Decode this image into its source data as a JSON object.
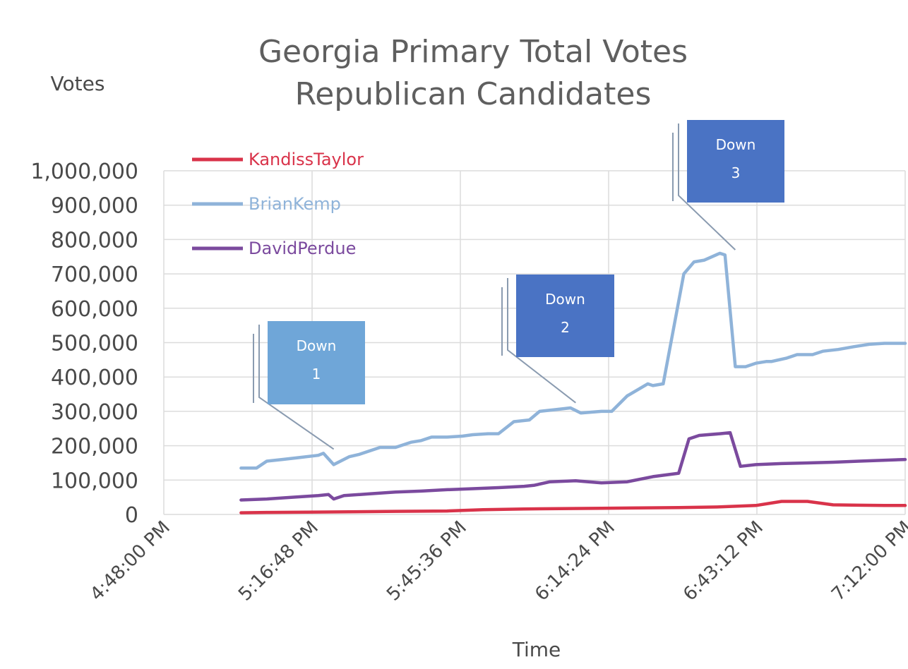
{
  "chart_data": {
    "type": "line",
    "title_line1": "Georgia Primary Total Votes",
    "title_line2": "Republican Candidates",
    "ylabel": "Votes",
    "xlabel": "Time",
    "y_ticks": [
      "1,000,000",
      "900,000",
      "800,000",
      "700,000",
      "600,000",
      "500,000",
      "400,000",
      "300,000",
      "200,000",
      "100,000",
      "0"
    ],
    "y_tick_values": [
      1000000,
      900000,
      800000,
      700000,
      600000,
      500000,
      400000,
      300000,
      200000,
      100000,
      0
    ],
    "x_ticks": [
      "4:48:00 PM",
      "5:16:48 PM",
      "5:45:36 PM",
      "6:14:24 PM",
      "6:43:12 PM",
      "7:12:00 PM"
    ],
    "x_tick_minutes": [
      0,
      28.8,
      57.6,
      86.4,
      115.2,
      144
    ],
    "ylim": [
      0,
      1000000
    ],
    "xlim_minutes": [
      0,
      144
    ],
    "grid": true,
    "legend_position": "top-left",
    "series": [
      {
        "name": "KandissTaylor",
        "color": "#d9334a",
        "x_minutes": [
          15,
          20,
          30,
          45,
          55,
          62,
          70,
          85,
          100,
          108,
          115,
          120,
          125,
          130,
          135,
          140,
          144
        ],
        "values": [
          5000,
          6000,
          7000,
          9000,
          10000,
          14000,
          16000,
          18000,
          20000,
          22000,
          26000,
          38000,
          38000,
          28000,
          27000,
          26000,
          26000
        ]
      },
      {
        "name": "BrianKemp",
        "color": "#8fb3d9",
        "x_minutes": [
          15,
          18,
          20,
          23,
          26,
          30,
          31,
          33,
          36,
          38,
          40,
          42,
          45,
          48,
          50,
          52,
          55,
          58,
          60,
          63,
          65,
          68,
          71,
          73,
          76,
          79,
          81,
          85,
          87,
          90,
          94,
          95,
          97,
          101,
          103,
          105,
          108,
          109,
          111,
          113,
          115,
          117,
          118,
          121,
          123,
          126,
          128,
          131,
          134,
          137,
          140,
          144
        ],
        "values": [
          135000,
          135000,
          155000,
          160000,
          165000,
          172000,
          178000,
          145000,
          168000,
          175000,
          185000,
          195000,
          195000,
          210000,
          215000,
          225000,
          225000,
          228000,
          232000,
          235000,
          235000,
          270000,
          275000,
          300000,
          305000,
          310000,
          295000,
          300000,
          300000,
          345000,
          380000,
          375000,
          380000,
          700000,
          735000,
          740000,
          760000,
          755000,
          430000,
          430000,
          440000,
          445000,
          445000,
          455000,
          465000,
          465000,
          475000,
          480000,
          488000,
          495000,
          498000,
          498000
        ]
      },
      {
        "name": "DavidPerdue",
        "color": "#7b4a9e",
        "x_minutes": [
          15,
          20,
          25,
          30,
          32,
          33,
          35,
          40,
          45,
          50,
          55,
          60,
          65,
          70,
          72,
          75,
          80,
          85,
          90,
          95,
          100,
          102,
          104,
          108,
          110,
          112,
          115,
          120,
          125,
          130,
          135,
          144
        ],
        "values": [
          42000,
          45000,
          50000,
          55000,
          58000,
          45000,
          55000,
          60000,
          65000,
          68000,
          72000,
          75000,
          78000,
          82000,
          85000,
          95000,
          98000,
          92000,
          95000,
          110000,
          120000,
          220000,
          230000,
          235000,
          238000,
          140000,
          145000,
          148000,
          150000,
          152000,
          155000,
          160000
        ]
      }
    ],
    "callouts": [
      {
        "line1": "Down",
        "line2": "1",
        "fill": "#6fa6d8",
        "target_x_minutes": 33,
        "target_value": 190000
      },
      {
        "line1": "Down",
        "line2": "2",
        "fill": "#4a73c4",
        "target_x_minutes": 80,
        "target_value": 325000
      },
      {
        "line1": "Down",
        "line2": "3",
        "fill": "#4a73c4",
        "target_x_minutes": 111,
        "target_value": 770000
      }
    ]
  }
}
